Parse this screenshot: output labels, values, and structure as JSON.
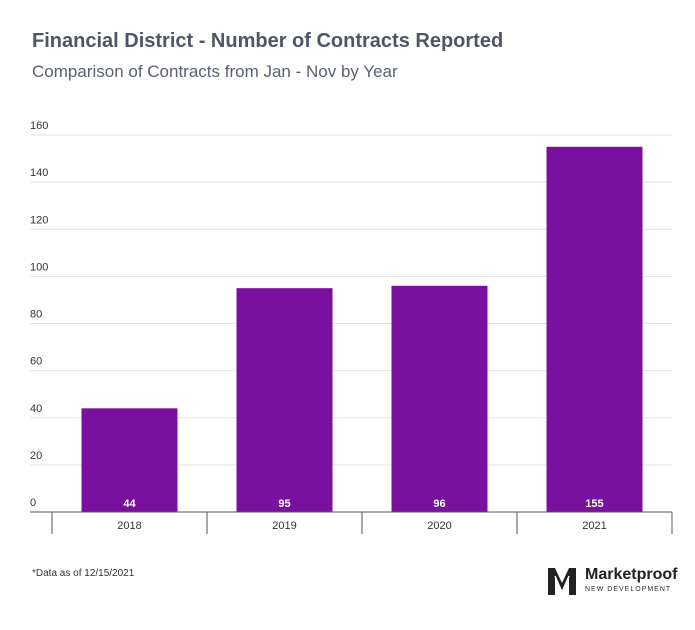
{
  "header": {
    "title": "Financial District - Number of Contracts Reported",
    "subtitle": "Comparison of Contracts from Jan - Nov by Year"
  },
  "footer": {
    "note": "*Data as of 12/15/2021",
    "logo_name": "Marketproof",
    "logo_sub": "NEW DEVELOPMENT"
  },
  "colors": {
    "bar": "#7a119e",
    "grid": "#e3e3e3",
    "axis": "#555555"
  },
  "chart_data": {
    "type": "bar",
    "title": "Financial District - Number of Contracts Reported",
    "subtitle": "Comparison of Contracts from Jan - Nov by Year",
    "categories": [
      "2018",
      "2019",
      "2020",
      "2021"
    ],
    "values": [
      44,
      95,
      96,
      155
    ],
    "value_labels": [
      "44",
      "95",
      "96",
      "155"
    ],
    "y_ticks": [
      0,
      20,
      40,
      60,
      80,
      100,
      120,
      140,
      160
    ],
    "y_tick_labels": [
      "0",
      "20",
      "40",
      "60",
      "80",
      "100",
      "120",
      "140",
      "160"
    ],
    "xlabel": "",
    "ylabel": "",
    "ylim": [
      0,
      160
    ],
    "grid": true,
    "legend": "none"
  }
}
